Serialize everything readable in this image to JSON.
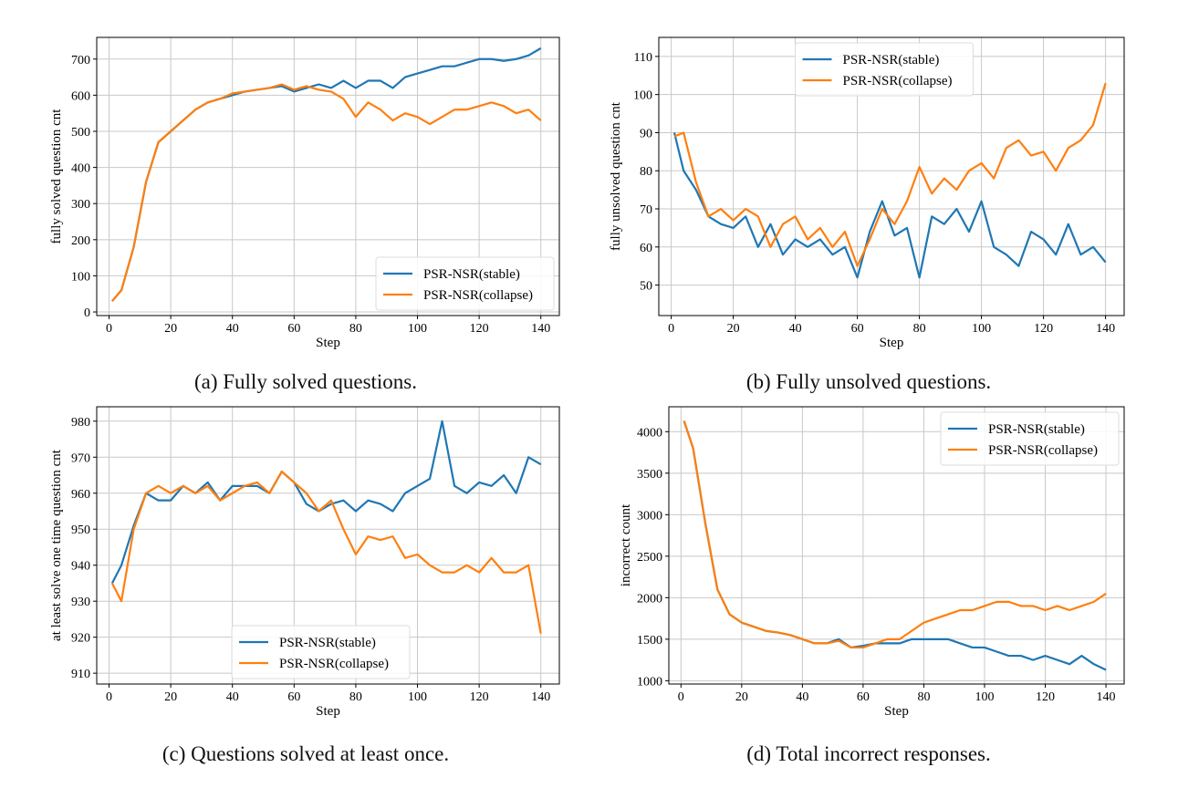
{
  "colors": {
    "stable": "#1f77b4",
    "collapse": "#ff7f0e"
  },
  "captions": [
    "(a) Fully solved questions.",
    "(b) Fully unsolved questions.",
    "(c) Questions solved at least once.",
    "(d) Total incorrect responses."
  ],
  "chart_data": [
    {
      "type": "line",
      "xlabel": "Step",
      "ylabel": "fully solved question cnt",
      "xlim": [
        -4,
        146
      ],
      "ylim": [
        -10,
        760
      ],
      "xticks": [
        0,
        20,
        40,
        60,
        80,
        100,
        120,
        140
      ],
      "yticks": [
        0,
        100,
        200,
        300,
        400,
        500,
        600,
        700
      ],
      "grid": true,
      "legend": "lower-right",
      "x": [
        1,
        4,
        8,
        12,
        16,
        20,
        24,
        28,
        32,
        36,
        40,
        44,
        48,
        52,
        56,
        60,
        64,
        68,
        72,
        76,
        80,
        84,
        88,
        92,
        96,
        100,
        104,
        108,
        112,
        116,
        120,
        124,
        128,
        132,
        136,
        140
      ],
      "series": [
        {
          "name": "PSR-NSR(stable)",
          "values": [
            30,
            60,
            180,
            360,
            470,
            500,
            530,
            560,
            580,
            590,
            600,
            610,
            615,
            620,
            625,
            610,
            620,
            630,
            620,
            640,
            620,
            640,
            640,
            620,
            650,
            660,
            670,
            680,
            680,
            690,
            700,
            700,
            695,
            700,
            710,
            730
          ]
        },
        {
          "name": "PSR-NSR(collapse)",
          "values": [
            30,
            60,
            180,
            360,
            470,
            500,
            530,
            560,
            580,
            590,
            605,
            610,
            615,
            620,
            630,
            615,
            625,
            615,
            610,
            590,
            540,
            580,
            560,
            530,
            550,
            540,
            520,
            540,
            560,
            560,
            570,
            580,
            570,
            550,
            560,
            530
          ]
        }
      ]
    },
    {
      "type": "line",
      "xlabel": "Step",
      "ylabel": "fully unsolved question cnt",
      "xlim": [
        -4,
        146
      ],
      "ylim": [
        42,
        115
      ],
      "xticks": [
        0,
        20,
        40,
        60,
        80,
        100,
        120,
        140
      ],
      "yticks": [
        50,
        60,
        70,
        80,
        90,
        100,
        110
      ],
      "grid": true,
      "legend": "upper-center",
      "x": [
        1,
        4,
        8,
        12,
        16,
        20,
        24,
        28,
        32,
        36,
        40,
        44,
        48,
        52,
        56,
        60,
        64,
        68,
        72,
        76,
        80,
        84,
        88,
        92,
        96,
        100,
        104,
        108,
        112,
        116,
        120,
        124,
        128,
        132,
        136,
        140
      ],
      "series": [
        {
          "name": "PSR-NSR(stable)",
          "values": [
            90,
            80,
            75,
            68,
            66,
            65,
            68,
            60,
            66,
            58,
            62,
            60,
            62,
            58,
            60,
            52,
            64,
            72,
            63,
            65,
            52,
            68,
            66,
            70,
            64,
            72,
            60,
            58,
            55,
            64,
            62,
            58,
            66,
            58,
            60,
            56
          ]
        },
        {
          "name": "PSR-NSR(collapse)",
          "values": [
            89,
            90,
            77,
            68,
            70,
            67,
            70,
            68,
            60,
            66,
            68,
            62,
            65,
            60,
            64,
            55,
            62,
            70,
            66,
            72,
            81,
            74,
            78,
            75,
            80,
            82,
            78,
            86,
            88,
            84,
            85,
            80,
            86,
            88,
            92,
            103
          ]
        }
      ]
    },
    {
      "type": "line",
      "xlabel": "Step",
      "ylabel": "at least solve one time question cnt",
      "xlim": [
        -4,
        146
      ],
      "ylim": [
        907,
        984
      ],
      "xticks": [
        0,
        20,
        40,
        60,
        80,
        100,
        120,
        140
      ],
      "yticks": [
        910,
        920,
        930,
        940,
        950,
        960,
        970,
        980
      ],
      "grid": true,
      "legend": "lower-center",
      "x": [
        1,
        4,
        8,
        12,
        16,
        20,
        24,
        28,
        32,
        36,
        40,
        44,
        48,
        52,
        56,
        60,
        64,
        68,
        72,
        76,
        80,
        84,
        88,
        92,
        96,
        100,
        104,
        108,
        112,
        116,
        120,
        124,
        128,
        132,
        136,
        140
      ],
      "series": [
        {
          "name": "PSR-NSR(stable)",
          "values": [
            935,
            940,
            951,
            960,
            958,
            958,
            962,
            960,
            963,
            958,
            962,
            962,
            962,
            960,
            966,
            963,
            957,
            955,
            957,
            958,
            955,
            958,
            957,
            955,
            960,
            962,
            964,
            980,
            962,
            960,
            963,
            962,
            965,
            960,
            970,
            968
          ]
        },
        {
          "name": "PSR-NSR(collapse)",
          "values": [
            935,
            930,
            950,
            960,
            962,
            960,
            962,
            960,
            962,
            958,
            960,
            962,
            963,
            960,
            966,
            963,
            960,
            955,
            958,
            950,
            943,
            948,
            947,
            948,
            942,
            943,
            940,
            938,
            938,
            940,
            938,
            942,
            938,
            938,
            940,
            921
          ]
        }
      ]
    },
    {
      "type": "line",
      "xlabel": "Step",
      "ylabel": "incorrect count",
      "xlim": [
        -4,
        146
      ],
      "ylim": [
        960,
        4300
      ],
      "xticks": [
        0,
        20,
        40,
        60,
        80,
        100,
        120,
        140
      ],
      "yticks": [
        1000,
        1500,
        2000,
        2500,
        3000,
        3500,
        4000
      ],
      "grid": true,
      "legend": "upper-right",
      "x": [
        1,
        4,
        8,
        12,
        16,
        20,
        24,
        28,
        32,
        36,
        40,
        44,
        48,
        52,
        56,
        60,
        64,
        68,
        72,
        76,
        80,
        84,
        88,
        92,
        96,
        100,
        104,
        108,
        112,
        116,
        120,
        124,
        128,
        132,
        136,
        140
      ],
      "series": [
        {
          "name": "PSR-NSR(stable)",
          "values": [
            4130,
            3800,
            2900,
            2100,
            1800,
            1700,
            1650,
            1600,
            1580,
            1550,
            1500,
            1450,
            1450,
            1500,
            1400,
            1420,
            1450,
            1450,
            1450,
            1500,
            1500,
            1500,
            1500,
            1450,
            1400,
            1400,
            1350,
            1300,
            1300,
            1250,
            1300,
            1250,
            1200,
            1300,
            1200,
            1130
          ]
        },
        {
          "name": "PSR-NSR(collapse)",
          "values": [
            4130,
            3800,
            2900,
            2100,
            1800,
            1700,
            1650,
            1600,
            1580,
            1550,
            1500,
            1450,
            1450,
            1480,
            1400,
            1400,
            1450,
            1500,
            1500,
            1600,
            1700,
            1750,
            1800,
            1850,
            1850,
            1900,
            1950,
            1950,
            1900,
            1900,
            1850,
            1900,
            1850,
            1900,
            1950,
            2050
          ]
        }
      ]
    }
  ]
}
